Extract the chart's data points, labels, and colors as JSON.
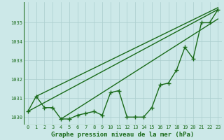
{
  "title": "Graphe pression niveau de la mer (hPa)",
  "x_hours": [
    0,
    1,
    2,
    3,
    4,
    5,
    6,
    7,
    8,
    9,
    10,
    11,
    12,
    13,
    14,
    15,
    16,
    17,
    18,
    19,
    20,
    21,
    22,
    23
  ],
  "main_y": [
    1030.3,
    1031.1,
    1030.5,
    1030.5,
    1029.9,
    1029.9,
    1030.1,
    1030.2,
    1030.3,
    1030.1,
    1031.3,
    1031.4,
    1030.0,
    1030.0,
    1030.0,
    1030.5,
    1031.7,
    1031.8,
    1032.5,
    1033.7,
    1033.1,
    1035.0,
    1035.0,
    1035.7
  ],
  "trend_lines": [
    {
      "x": [
        0,
        23
      ],
      "y": [
        1030.3,
        1035.7
      ]
    },
    {
      "x": [
        1,
        23
      ],
      "y": [
        1031.1,
        1035.8
      ]
    },
    {
      "x": [
        4,
        23
      ],
      "y": [
        1029.9,
        1035.2
      ]
    }
  ],
  "line_color": "#1a6b1a",
  "bg_color": "#cce8e8",
  "grid_color": "#aacece",
  "ylim": [
    1029.6,
    1036.1
  ],
  "yticks": [
    1030,
    1031,
    1032,
    1033,
    1034,
    1035
  ],
  "xtick_labels": [
    "0",
    "1",
    "2",
    "3",
    "4",
    "5",
    "6",
    "7",
    "8",
    "9",
    "10",
    "11",
    "12",
    "13",
    "14",
    "15",
    "16",
    "17",
    "18",
    "19",
    "20",
    "21",
    "22",
    "23"
  ],
  "marker": "+",
  "markersize": 4,
  "markeredgewidth": 1.0,
  "linewidth": 1.0,
  "tick_fontsize": 5.0,
  "xlabel_fontsize": 6.5
}
